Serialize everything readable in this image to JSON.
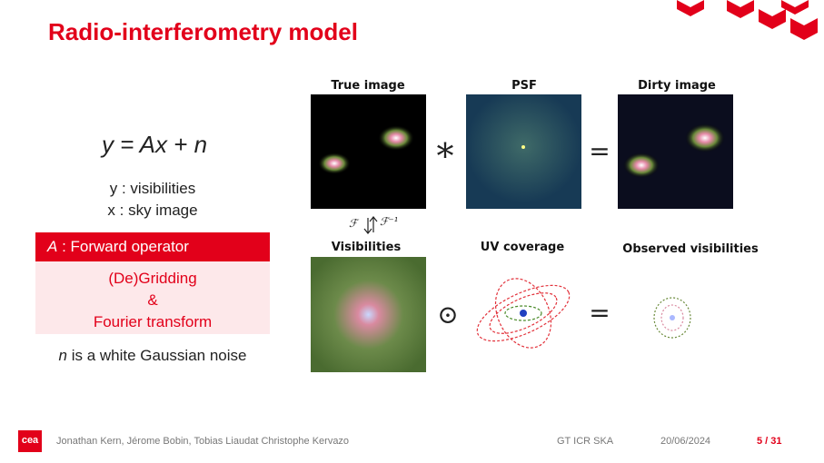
{
  "header": {
    "title": "Radio-interferometry model"
  },
  "left": {
    "equation": "y = Ax + n",
    "lines": [
      "y : visibilities",
      "x : sky image"
    ],
    "operator_box": {
      "symbol": "A",
      "label": ": Forward operator",
      "body": [
        "(De)Gridding",
        "&",
        "Fourier transform"
      ]
    },
    "noise": {
      "symbol": "n",
      "text": "is a white Gaussian noise"
    }
  },
  "figure": {
    "labels": {
      "true_image": "True image",
      "psf": "PSF",
      "dirty_image": "Dirty image",
      "visibilities": "Visibilities",
      "uv_coverage": "UV coverage",
      "observed": "Observed visibilities"
    },
    "operators": {
      "convolution": "*",
      "equals_top": "=",
      "hadamard": "⊙",
      "equals_bottom": "=",
      "fourier": "ℱ",
      "inverse_fourier": "ℱ⁻¹"
    }
  },
  "footer": {
    "logo": "cea",
    "authors": "Jonathan Kern, Jérome Bobin, Tobias Liaudat Christophe Kervazo",
    "event": "GT ICR SKA",
    "date": "20/06/2024",
    "page": "5 / 31"
  }
}
